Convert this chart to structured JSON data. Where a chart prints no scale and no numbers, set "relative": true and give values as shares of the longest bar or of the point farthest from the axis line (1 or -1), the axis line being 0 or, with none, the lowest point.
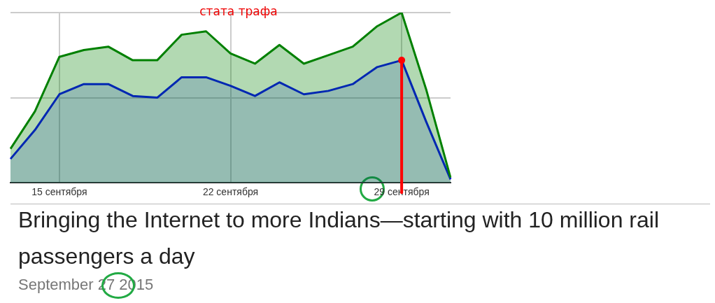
{
  "chart_data": {
    "type": "area",
    "title": "стата трафа",
    "relative": true,
    "grid": true,
    "categories": [
      null,
      null,
      "15 сентября",
      null,
      null,
      null,
      null,
      null,
      null,
      "22 сентября",
      null,
      null,
      null,
      null,
      null,
      null,
      "29 сентября",
      null,
      null
    ],
    "series": [
      {
        "color": "#008000",
        "values": [
          0.2,
          0.42,
          0.74,
          0.78,
          0.8,
          0.72,
          0.72,
          0.87,
          0.89,
          0.76,
          0.7,
          0.81,
          0.7,
          0.75,
          0.8,
          0.92,
          1,
          0.55,
          0.03
        ]
      },
      {
        "color": "#0000ff",
        "values": [
          0.14,
          0.31,
          0.52,
          0.58,
          0.58,
          0.51,
          0.5,
          0.62,
          0.62,
          0.57,
          0.51,
          0.59,
          0.52,
          0.54,
          0.58,
          0.68,
          0.72,
          0.36,
          0.02
        ]
      }
    ],
    "ref_lines": [
      {
        "axis": "x",
        "value": "29 сентября",
        "color": "#ff0000"
      }
    ],
    "annotations": [
      "Bringing the Internet to more Indians—starting with 10 million rail passengers a day",
      "September 27 2015"
    ]
  }
}
